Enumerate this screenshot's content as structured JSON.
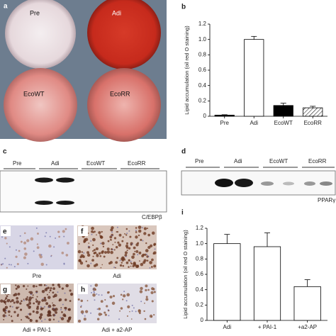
{
  "panels": {
    "a": {
      "label": "a",
      "wells": [
        "Pre",
        "Adi",
        "EcoWT",
        "EcoRR"
      ]
    },
    "c": {
      "label": "c",
      "lanes": [
        "Pre",
        "Adi",
        "EcoWT",
        "EcoRR"
      ],
      "protein": "C/EBPβ"
    },
    "d": {
      "label": "d",
      "lanes": [
        "Pre",
        "Adi",
        "EcoWT",
        "EcoRR"
      ],
      "protein": "PPARγ"
    },
    "e": {
      "label": "e",
      "caption": "Pre"
    },
    "f": {
      "label": "f",
      "caption": "Adi"
    },
    "g": {
      "label": "g",
      "caption": "Adi + PAI-1"
    },
    "h": {
      "label": "h",
      "caption": "Adi + a2-AP"
    }
  },
  "chart_data": [
    {
      "type": "bar",
      "panel": "b",
      "y_label": "Lipid accumulation (oil red O staining)",
      "categories": [
        "Pre",
        "Adi",
        "EcoWT",
        "EcoRR"
      ],
      "values": [
        0.015,
        1.0,
        0.14,
        0.11
      ],
      "errors": [
        0.005,
        0.04,
        0.03,
        0.02
      ],
      "fills": [
        "black",
        "white",
        "black",
        "hatched"
      ],
      "ylim": [
        0,
        1.2
      ],
      "yticks": [
        0,
        0.2,
        0.4,
        0.6,
        0.8,
        {
          "value": 1,
          "label": "1.0"
        },
        1.2
      ]
    },
    {
      "type": "bar",
      "panel": "i",
      "y_label": "Lipid accumulation (oil red O staining)",
      "categories": [
        "Adi",
        "+ PAI-1",
        "+a2-AP"
      ],
      "values": [
        1.0,
        0.96,
        0.44
      ],
      "errors": [
        0.12,
        0.18,
        0.09
      ],
      "fills": [
        "white",
        "white",
        "white"
      ],
      "ylim": [
        0,
        1.2
      ],
      "yticks": [
        0,
        0.2,
        0.4,
        0.6,
        0.8,
        {
          "value": 1,
          "label": "1.0"
        },
        1.2
      ]
    }
  ]
}
